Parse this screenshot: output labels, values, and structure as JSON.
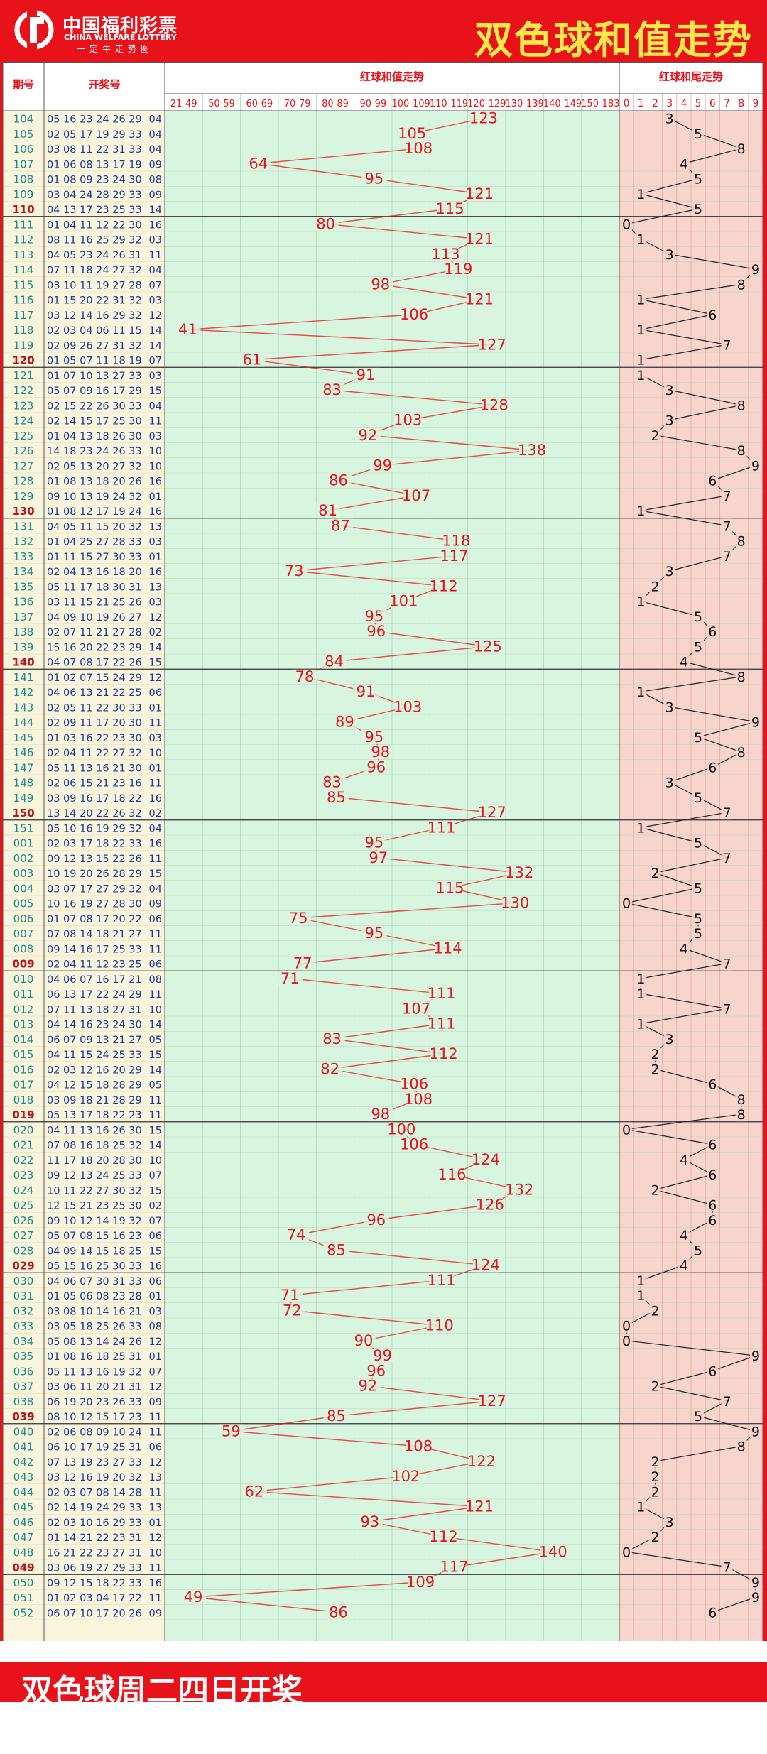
{
  "header": {
    "logo_cn": "中国福利彩票",
    "logo_en": "CHINA WELFARE LOTTERY",
    "logo_sub": "一定牛走势图",
    "title": "双色球和值走势"
  },
  "footer": {
    "text": "双色球周二四日开奖"
  },
  "colors": {
    "brand_red": "#e8121a",
    "title_yellow": "#ffe94a",
    "issue_teal": "#1b8a8a",
    "number_blue": "#1a3a9a",
    "sum_red": "#e8121a",
    "trend_panel": "#d8f5e0",
    "tail_panel": "#f7d4cc",
    "left_panel": "#f9f5dc"
  },
  "chart_data": {
    "type": "table",
    "columns": {
      "issue": "期号",
      "draw": "开奖号",
      "sum_section": "红球和值走势",
      "tail_section": "红球和尾走势"
    },
    "sum_ranges": [
      "21-49",
      "50-59",
      "60-69",
      "70-79",
      "80-89",
      "90-99",
      "100-109",
      "110-119",
      "120-129",
      "130-139",
      "140-149",
      "150-183"
    ],
    "tail_digits": [
      "0",
      "1",
      "2",
      "3",
      "4",
      "5",
      "6",
      "7",
      "8",
      "9"
    ],
    "rows": [
      {
        "issue": "104",
        "reds": "05 16 23 24 26 29",
        "blue": "04",
        "sum": 123
      },
      {
        "issue": "105",
        "reds": "02 05 17 19 29 33",
        "blue": "04",
        "sum": 105
      },
      {
        "issue": "106",
        "reds": "03 08 11 22 31 33",
        "blue": "04",
        "sum": 108
      },
      {
        "issue": "107",
        "reds": "01 06 08 13 17 19",
        "blue": "09",
        "sum": 64
      },
      {
        "issue": "108",
        "reds": "01 08 09 23 24 30",
        "blue": "08",
        "sum": 95
      },
      {
        "issue": "109",
        "reds": "03 04 24 28 29 33",
        "blue": "09",
        "sum": 121
      },
      {
        "issue": "110",
        "reds": "04 13 17 23 25 33",
        "blue": "14",
        "sum": 115
      },
      {
        "issue": "111",
        "reds": "01 04 11 12 22 30",
        "blue": "16",
        "sum": 80
      },
      {
        "issue": "112",
        "reds": "08 11 16 25 29 32",
        "blue": "03",
        "sum": 121
      },
      {
        "issue": "113",
        "reds": "04 05 23 24 26 31",
        "blue": "11",
        "sum": 113
      },
      {
        "issue": "114",
        "reds": "07 11 18 24 27 32",
        "blue": "04",
        "sum": 119
      },
      {
        "issue": "115",
        "reds": "03 10 11 19 27 28",
        "blue": "07",
        "sum": 98
      },
      {
        "issue": "116",
        "reds": "01 15 20 22 31 32",
        "blue": "03",
        "sum": 121
      },
      {
        "issue": "117",
        "reds": "03 12 14 16 29 32",
        "blue": "12",
        "sum": 106
      },
      {
        "issue": "118",
        "reds": "02 03 04 06 11 15",
        "blue": "14",
        "sum": 41
      },
      {
        "issue": "119",
        "reds": "02 09 26 27 31 32",
        "blue": "14",
        "sum": 127
      },
      {
        "issue": "120",
        "reds": "01 05 07 11 18 19",
        "blue": "07",
        "sum": 61
      },
      {
        "issue": "121",
        "reds": "01 07 10 13 27 33",
        "blue": "03",
        "sum": 91
      },
      {
        "issue": "122",
        "reds": "05 07 09 16 17 29",
        "blue": "15",
        "sum": 83
      },
      {
        "issue": "123",
        "reds": "02 15 22 26 30 33",
        "blue": "04",
        "sum": 128
      },
      {
        "issue": "124",
        "reds": "02 14 15 17 25 30",
        "blue": "11",
        "sum": 103
      },
      {
        "issue": "125",
        "reds": "01 04 13 18 26 30",
        "blue": "03",
        "sum": 92
      },
      {
        "issue": "126",
        "reds": "14 18 23 24 26 33",
        "blue": "10",
        "sum": 138
      },
      {
        "issue": "127",
        "reds": "02 05 13 20 27 32",
        "blue": "10",
        "sum": 99
      },
      {
        "issue": "128",
        "reds": "01 08 13 18 20 26",
        "blue": "16",
        "sum": 86
      },
      {
        "issue": "129",
        "reds": "09 10 13 19 24 32",
        "blue": "01",
        "sum": 107
      },
      {
        "issue": "130",
        "reds": "01 08 12 17 19 24",
        "blue": "16",
        "sum": 81
      },
      {
        "issue": "131",
        "reds": "04 05 11 15 20 32",
        "blue": "13",
        "sum": 87
      },
      {
        "issue": "132",
        "reds": "01 04 25 27 28 33",
        "blue": "03",
        "sum": 118
      },
      {
        "issue": "133",
        "reds": "01 11 15 27 30 33",
        "blue": "01",
        "sum": 117
      },
      {
        "issue": "134",
        "reds": "02 04 13 16 18 20",
        "blue": "16",
        "sum": 73
      },
      {
        "issue": "135",
        "reds": "05 11 17 18 30 31",
        "blue": "13",
        "sum": 112
      },
      {
        "issue": "136",
        "reds": "03 11 15 21 25 26",
        "blue": "03",
        "sum": 101
      },
      {
        "issue": "137",
        "reds": "04 09 10 19 26 27",
        "blue": "12",
        "sum": 95
      },
      {
        "issue": "138",
        "reds": "02 07 11 21 27 28",
        "blue": "02",
        "sum": 96
      },
      {
        "issue": "139",
        "reds": "15 16 20 22 23 29",
        "blue": "14",
        "sum": 125
      },
      {
        "issue": "140",
        "reds": "04 07 08 17 22 26",
        "blue": "15",
        "sum": 84
      },
      {
        "issue": "141",
        "reds": "01 02 07 15 24 29",
        "blue": "12",
        "sum": 78
      },
      {
        "issue": "142",
        "reds": "04 06 13 21 22 25",
        "blue": "06",
        "sum": 91
      },
      {
        "issue": "143",
        "reds": "02 05 11 22 30 33",
        "blue": "01",
        "sum": 103
      },
      {
        "issue": "144",
        "reds": "02 09 11 17 20 30",
        "blue": "11",
        "sum": 89
      },
      {
        "issue": "145",
        "reds": "01 03 16 22 23 30",
        "blue": "03",
        "sum": 95
      },
      {
        "issue": "146",
        "reds": "02 04 11 22 27 32",
        "blue": "10",
        "sum": 98
      },
      {
        "issue": "147",
        "reds": "05 11 13 16 21 30",
        "blue": "01",
        "sum": 96
      },
      {
        "issue": "148",
        "reds": "02 06 15 21 23 16",
        "blue": "11",
        "sum": 83
      },
      {
        "issue": "149",
        "reds": "03 09 16 17 18 22",
        "blue": "16",
        "sum": 85
      },
      {
        "issue": "150",
        "reds": "13 14 20 22 26 32",
        "blue": "02",
        "sum": 127
      },
      {
        "issue": "151",
        "reds": "05 10 16 19 29 32",
        "blue": "04",
        "sum": 111
      },
      {
        "issue": "001",
        "reds": "02 03 17 18 22 33",
        "blue": "16",
        "sum": 95
      },
      {
        "issue": "002",
        "reds": "09 12 13 15 22 26",
        "blue": "11",
        "sum": 97
      },
      {
        "issue": "003",
        "reds": "10 19 20 26 28 29",
        "blue": "15",
        "sum": 132
      },
      {
        "issue": "004",
        "reds": "03 07 17 27 29 32",
        "blue": "04",
        "sum": 115
      },
      {
        "issue": "005",
        "reds": "10 16 19 27 28 30",
        "blue": "09",
        "sum": 130
      },
      {
        "issue": "006",
        "reds": "01 07 08 17 20 22",
        "blue": "06",
        "sum": 75
      },
      {
        "issue": "007",
        "reds": "07 08 14 18 21 27",
        "blue": "11",
        "sum": 95
      },
      {
        "issue": "008",
        "reds": "09 14 16 17 25 33",
        "blue": "11",
        "sum": 114
      },
      {
        "issue": "009",
        "reds": "02 04 11 12 23 25",
        "blue": "06",
        "sum": 77
      },
      {
        "issue": "010",
        "reds": "04 06 07 16 17 21",
        "blue": "08",
        "sum": 71
      },
      {
        "issue": "011",
        "reds": "06 13 17 22 24 29",
        "blue": "11",
        "sum": 111
      },
      {
        "issue": "012",
        "reds": "07 11 13 18 27 31",
        "blue": "10",
        "sum": 107
      },
      {
        "issue": "013",
        "reds": "04 14 16 23 24 30",
        "blue": "14",
        "sum": 111
      },
      {
        "issue": "014",
        "reds": "06 07 09 13 21 27",
        "blue": "05",
        "sum": 83
      },
      {
        "issue": "015",
        "reds": "04 11 15 24 25 33",
        "blue": "15",
        "sum": 112
      },
      {
        "issue": "016",
        "reds": "02 03 12 16 20 29",
        "blue": "14",
        "sum": 82
      },
      {
        "issue": "017",
        "reds": "04 12 15 18 28 29",
        "blue": "05",
        "sum": 106
      },
      {
        "issue": "018",
        "reds": "03 09 18 21 28 29",
        "blue": "11",
        "sum": 108
      },
      {
        "issue": "019",
        "reds": "05 13 17 18 22 23",
        "blue": "11",
        "sum": 98
      },
      {
        "issue": "020",
        "reds": "04 11 13 16 26 30",
        "blue": "15",
        "sum": 100
      },
      {
        "issue": "021",
        "reds": "07 08 16 18 25 32",
        "blue": "14",
        "sum": 106
      },
      {
        "issue": "022",
        "reds": "11 17 18 20 28 30",
        "blue": "10",
        "sum": 124
      },
      {
        "issue": "023",
        "reds": "09 12 13 24 25 33",
        "blue": "07",
        "sum": 116
      },
      {
        "issue": "024",
        "reds": "10 11 22 27 30 32",
        "blue": "15",
        "sum": 132
      },
      {
        "issue": "025",
        "reds": "12 15 21 23 25 30",
        "blue": "02",
        "sum": 126
      },
      {
        "issue": "026",
        "reds": "09 10 12 14 19 32",
        "blue": "07",
        "sum": 96
      },
      {
        "issue": "027",
        "reds": "05 07 08 15 16 23",
        "blue": "06",
        "sum": 74
      },
      {
        "issue": "028",
        "reds": "04 09 14 15 18 25",
        "blue": "15",
        "sum": 85
      },
      {
        "issue": "029",
        "reds": "05 15 16 25 30 33",
        "blue": "16",
        "sum": 124
      },
      {
        "issue": "030",
        "reds": "04 06 07 30 31 33",
        "blue": "06",
        "sum": 111
      },
      {
        "issue": "031",
        "reds": "01 05 06 08 23 28",
        "blue": "01",
        "sum": 71
      },
      {
        "issue": "032",
        "reds": "03 08 10 14 16 21",
        "blue": "03",
        "sum": 72
      },
      {
        "issue": "033",
        "reds": "03 05 18 25 26 33",
        "blue": "08",
        "sum": 110
      },
      {
        "issue": "034",
        "reds": "05 08 13 14 24 26",
        "blue": "12",
        "sum": 90
      },
      {
        "issue": "035",
        "reds": "01 08 16 18 25 31",
        "blue": "01",
        "sum": 99
      },
      {
        "issue": "036",
        "reds": "05 11 13 16 19 32",
        "blue": "07",
        "sum": 96
      },
      {
        "issue": "037",
        "reds": "03 06 11 20 21 31",
        "blue": "12",
        "sum": 92
      },
      {
        "issue": "038",
        "reds": "06 19 20 23 26 33",
        "blue": "09",
        "sum": 127
      },
      {
        "issue": "039",
        "reds": "08 10 12 15 17 23",
        "blue": "11",
        "sum": 85
      },
      {
        "issue": "040",
        "reds": "02 06 08 09 10 24",
        "blue": "11",
        "sum": 59
      },
      {
        "issue": "041",
        "reds": "06 10 17 19 25 31",
        "blue": "06",
        "sum": 108
      },
      {
        "issue": "042",
        "reds": "07 13 19 23 27 33",
        "blue": "12",
        "sum": 122
      },
      {
        "issue": "043",
        "reds": "03 12 16 19 20 32",
        "blue": "13",
        "sum": 102
      },
      {
        "issue": "044",
        "reds": "02 03 07 08 14 28",
        "blue": "11",
        "sum": 62
      },
      {
        "issue": "045",
        "reds": "02 14 19 24 29 33",
        "blue": "13",
        "sum": 121
      },
      {
        "issue": "046",
        "reds": "02 03 10 16 29 33",
        "blue": "01",
        "sum": 93
      },
      {
        "issue": "047",
        "reds": "01 14 21 22 23 31",
        "blue": "12",
        "sum": 112
      },
      {
        "issue": "048",
        "reds": "16 21 22 23 27 31",
        "blue": "10",
        "sum": 140
      },
      {
        "issue": "049",
        "reds": "03 06 19 27 29 33",
        "blue": "11",
        "sum": 117
      },
      {
        "issue": "050",
        "reds": "09 12 15 18 22 33",
        "blue": "16",
        "sum": 109
      },
      {
        "issue": "051",
        "reds": "01 02 03 04 17 22",
        "blue": "11",
        "sum": 49
      },
      {
        "issue": "052",
        "reds": "06 07 10 17 20 26",
        "blue": "09",
        "sum": 86
      }
    ]
  }
}
